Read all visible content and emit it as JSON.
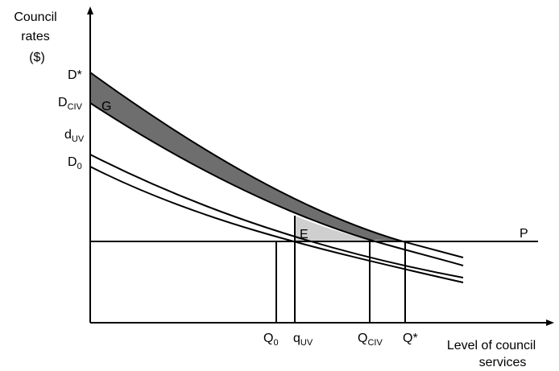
{
  "y_axis_label": [
    "Council",
    "rates",
    "($)"
  ],
  "x_axis_label": [
    "Level of council",
    "services"
  ],
  "curve_labels": [
    {
      "text": "D*"
    },
    {
      "text": "D",
      "sub": "CIV"
    },
    {
      "text": "d",
      "sub": "UV"
    },
    {
      "text": "D",
      "sub": "0"
    }
  ],
  "area_labels": [
    "G",
    "E"
  ],
  "price_label": "P",
  "quantity_labels": [
    {
      "text": "Q",
      "sub": "0"
    },
    {
      "text": "q",
      "sub": "UV"
    },
    {
      "text": "Q",
      "sub": "CIV"
    },
    {
      "text": "Q*"
    }
  ]
}
